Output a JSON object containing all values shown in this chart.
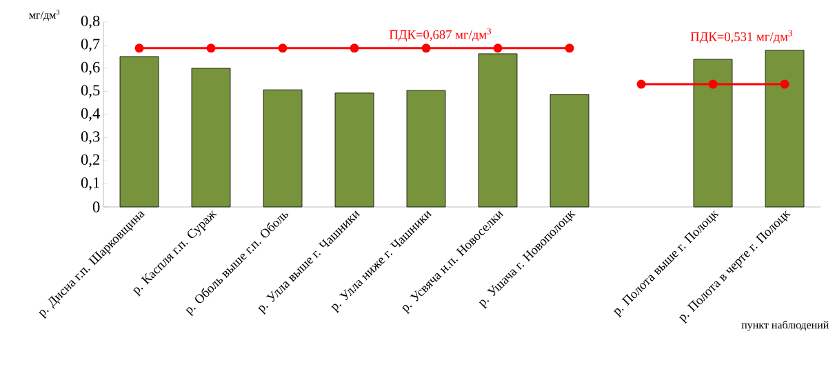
{
  "chart_data": {
    "type": "bar",
    "ylabel": "мг/дм$^{3}$",
    "xlabel": "пункт наблюдений",
    "categories": [
      "р. Дисна г.п. Шарковщина",
      "р. Каспля г.п. Сураж",
      "р. Оболь выше г.п. Оболь",
      "р. Улла выше г. Чашники",
      "р. Улла ниже г. Чашники",
      "р. Усвяча н.п. Новоселки",
      "р. Ушача г. Новополоцк",
      null,
      "р. Полота выше г. Полоцк",
      "р. Полота в черте г. Полоцк"
    ],
    "series": [
      {
        "color": "#77933c",
        "values": [
          0.651,
          0.6,
          0.507,
          0.493,
          0.504,
          0.663,
          0.487,
          null,
          0.639,
          0.678
        ]
      },
      {
        "type": "line",
        "name": "ПДК=0,687 мг/дм$^{3}$",
        "color": "#ff0000",
        "values": [
          0.687,
          0.687,
          0.687,
          0.687,
          0.687,
          0.687,
          0.687,
          null,
          null,
          null
        ]
      },
      {
        "type": "line",
        "name": "ПДК=0,531 мг/дм$^{3}$",
        "color": "#ff0000",
        "values": [
          null,
          null,
          null,
          null,
          null,
          null,
          null,
          0.531,
          0.531,
          0.531
        ]
      }
    ],
    "marker": "circle",
    "ylim": [
      0,
      0.8
    ],
    "yticks": [
      0,
      {
        "value": 0.1,
        "label": "0,1"
      },
      {
        "value": 0.2,
        "label": "0,2"
      },
      {
        "value": 0.3,
        "label": "0,3"
      },
      {
        "value": 0.4,
        "label": "0,4"
      },
      {
        "value": 0.5,
        "label": "0,5"
      },
      {
        "value": 0.6,
        "label": "0,6"
      },
      {
        "value": 0.7,
        "label": "0,7"
      },
      {
        "value": 0.8,
        "label": "0,8"
      }
    ],
    "legend": false,
    "grid": false
  }
}
